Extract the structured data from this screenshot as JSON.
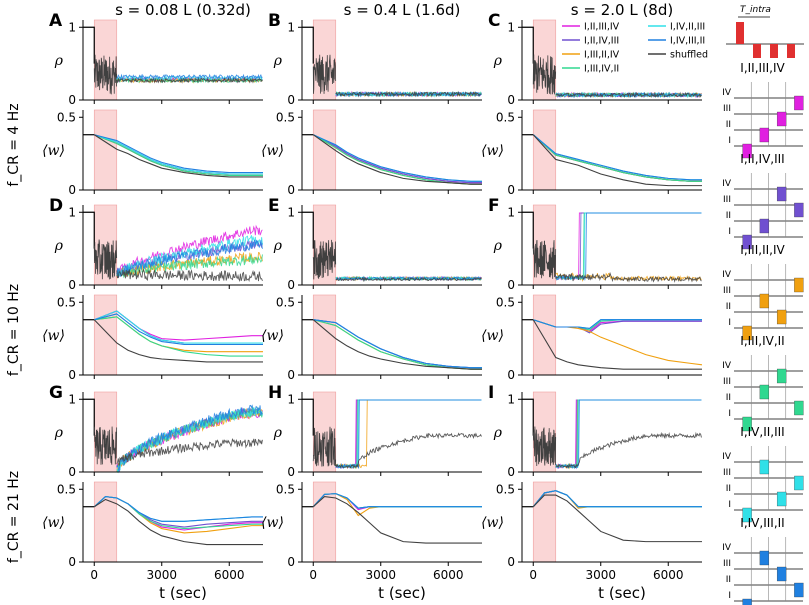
{
  "chart_data": {
    "type": "line",
    "column_titles": [
      "s = 0.08 L (0.32d)",
      "s = 0.4 L (1.6d)",
      "s = 2.0 L (8d)"
    ],
    "row_titles": [
      "f_CR = 4 Hz",
      "f_CR = 10 Hz",
      "f_CR = 21 Hz"
    ],
    "panel_letters": [
      "A",
      "B",
      "C",
      "D",
      "E",
      "F",
      "G",
      "H",
      "I"
    ],
    "xlabel": "t (sec)",
    "xlim": [
      -500,
      7500
    ],
    "xticks": [
      0,
      3000,
      6000
    ],
    "rho_label": "ρ",
    "w_label": "⟨w⟩",
    "rho_ylim": [
      0,
      1.1
    ],
    "rho_yticks": [
      0,
      1
    ],
    "w_ylim": [
      0,
      0.55
    ],
    "w_yticks": [
      0,
      0.5
    ],
    "stim_window": [
      0,
      1000
    ],
    "series_names": [
      "I,II,III,IV",
      "I,II,IV,III",
      "I,III,II,IV",
      "I,III,IV,II",
      "I,IV,II,III",
      "I,IV,III,II",
      "shuffled"
    ],
    "series_colors": [
      "#e020e0",
      "#7050d0",
      "#f0a010",
      "#30d890",
      "#30e0e8",
      "#2080e0",
      "#404040"
    ],
    "t_points": [
      1000,
      1500,
      2000,
      2500,
      3000,
      4000,
      5000,
      6000,
      7000,
      7500
    ],
    "panels": [
      {
        "row": 0,
        "col": 0,
        "rho_final": [
          0.28,
          0.28,
          0.27,
          0.27,
          0.3,
          0.32,
          0.27
        ],
        "w": [
          [
            0.32,
            0.28,
            0.24,
            0.2,
            0.17,
            0.13,
            0.11,
            0.1,
            0.1,
            0.1
          ],
          [
            0.33,
            0.29,
            0.25,
            0.21,
            0.18,
            0.14,
            0.12,
            0.11,
            0.11,
            0.11
          ],
          [
            0.32,
            0.28,
            0.24,
            0.2,
            0.17,
            0.13,
            0.11,
            0.1,
            0.1,
            0.1
          ],
          [
            0.32,
            0.28,
            0.24,
            0.2,
            0.17,
            0.13,
            0.11,
            0.1,
            0.1,
            0.1
          ],
          [
            0.33,
            0.29,
            0.25,
            0.21,
            0.18,
            0.14,
            0.12,
            0.11,
            0.11,
            0.11
          ],
          [
            0.34,
            0.3,
            0.26,
            0.22,
            0.19,
            0.15,
            0.13,
            0.12,
            0.12,
            0.12
          ],
          [
            0.28,
            0.25,
            0.21,
            0.18,
            0.15,
            0.12,
            0.1,
            0.09,
            0.09,
            0.09
          ]
        ]
      },
      {
        "row": 0,
        "col": 1,
        "rho_final": [
          0.08,
          0.08,
          0.08,
          0.08,
          0.08,
          0.08,
          0.08
        ],
        "w": [
          [
            0.3,
            0.25,
            0.21,
            0.18,
            0.15,
            0.11,
            0.08,
            0.06,
            0.05,
            0.05
          ],
          [
            0.3,
            0.25,
            0.21,
            0.18,
            0.15,
            0.11,
            0.08,
            0.06,
            0.05,
            0.05
          ],
          [
            0.29,
            0.24,
            0.2,
            0.17,
            0.14,
            0.1,
            0.07,
            0.05,
            0.04,
            0.04
          ],
          [
            0.29,
            0.24,
            0.2,
            0.17,
            0.14,
            0.1,
            0.07,
            0.05,
            0.04,
            0.04
          ],
          [
            0.31,
            0.26,
            0.22,
            0.19,
            0.16,
            0.12,
            0.09,
            0.07,
            0.06,
            0.06
          ],
          [
            0.31,
            0.26,
            0.22,
            0.19,
            0.16,
            0.12,
            0.09,
            0.07,
            0.06,
            0.06
          ],
          [
            0.27,
            0.22,
            0.18,
            0.15,
            0.12,
            0.08,
            0.06,
            0.05,
            0.04,
            0.04
          ]
        ]
      },
      {
        "row": 0,
        "col": 2,
        "rho_final": [
          0.07,
          0.07,
          0.07,
          0.07,
          0.07,
          0.07,
          0.07
        ],
        "w": [
          [
            0.24,
            0.22,
            0.2,
            0.18,
            0.16,
            0.12,
            0.09,
            0.07,
            0.06,
            0.06
          ],
          [
            0.24,
            0.22,
            0.2,
            0.18,
            0.16,
            0.12,
            0.09,
            0.07,
            0.06,
            0.06
          ],
          [
            0.24,
            0.22,
            0.2,
            0.18,
            0.16,
            0.12,
            0.09,
            0.07,
            0.06,
            0.06
          ],
          [
            0.24,
            0.22,
            0.2,
            0.18,
            0.16,
            0.12,
            0.09,
            0.07,
            0.06,
            0.06
          ],
          [
            0.25,
            0.23,
            0.21,
            0.19,
            0.17,
            0.13,
            0.1,
            0.08,
            0.07,
            0.07
          ],
          [
            0.25,
            0.23,
            0.21,
            0.19,
            0.17,
            0.13,
            0.1,
            0.08,
            0.07,
            0.07
          ],
          [
            0.21,
            0.19,
            0.17,
            0.14,
            0.11,
            0.07,
            0.04,
            0.03,
            0.03,
            0.03
          ]
        ]
      },
      {
        "row": 1,
        "col": 0,
        "rho_final": [
          0.75,
          0.55,
          0.38,
          0.35,
          0.62,
          0.55,
          0.12
        ],
        "w": [
          [
            0.44,
            0.38,
            0.32,
            0.28,
            0.25,
            0.24,
            0.25,
            0.26,
            0.27,
            0.27
          ],
          [
            0.44,
            0.38,
            0.32,
            0.27,
            0.24,
            0.22,
            0.22,
            0.22,
            0.22,
            0.22
          ],
          [
            0.4,
            0.34,
            0.28,
            0.23,
            0.2,
            0.17,
            0.16,
            0.16,
            0.16,
            0.16
          ],
          [
            0.4,
            0.34,
            0.28,
            0.23,
            0.2,
            0.16,
            0.14,
            0.13,
            0.13,
            0.13
          ],
          [
            0.44,
            0.38,
            0.32,
            0.27,
            0.24,
            0.22,
            0.22,
            0.22,
            0.22,
            0.22
          ],
          [
            0.42,
            0.36,
            0.3,
            0.26,
            0.23,
            0.21,
            0.21,
            0.21,
            0.21,
            0.21
          ],
          [
            0.22,
            0.17,
            0.14,
            0.12,
            0.11,
            0.1,
            0.09,
            0.09,
            0.09,
            0.09
          ]
        ]
      },
      {
        "row": 1,
        "col": 1,
        "rho_final": [
          0.09,
          0.09,
          0.09,
          0.09,
          0.09,
          0.09,
          0.08
        ],
        "w": [
          [
            0.36,
            0.31,
            0.26,
            0.22,
            0.18,
            0.12,
            0.08,
            0.06,
            0.05,
            0.05
          ],
          [
            0.36,
            0.31,
            0.26,
            0.22,
            0.18,
            0.12,
            0.08,
            0.06,
            0.05,
            0.05
          ],
          [
            0.34,
            0.29,
            0.24,
            0.2,
            0.16,
            0.11,
            0.07,
            0.05,
            0.04,
            0.04
          ],
          [
            0.34,
            0.29,
            0.24,
            0.2,
            0.16,
            0.11,
            0.07,
            0.05,
            0.04,
            0.04
          ],
          [
            0.36,
            0.31,
            0.26,
            0.22,
            0.18,
            0.12,
            0.08,
            0.06,
            0.05,
            0.05
          ],
          [
            0.36,
            0.31,
            0.26,
            0.22,
            0.18,
            0.12,
            0.08,
            0.06,
            0.05,
            0.05
          ],
          [
            0.25,
            0.2,
            0.16,
            0.13,
            0.11,
            0.08,
            0.06,
            0.05,
            0.04,
            0.04
          ]
        ]
      },
      {
        "row": 1,
        "col": 2,
        "rho_final": [
          1.0,
          1.0,
          0.09,
          1.0,
          1.0,
          1.0,
          0.08
        ],
        "w": [
          [
            0.33,
            0.33,
            0.33,
            0.3,
            0.36,
            0.37,
            0.37,
            0.37,
            0.37,
            0.37
          ],
          [
            0.33,
            0.33,
            0.33,
            0.29,
            0.35,
            0.37,
            0.37,
            0.37,
            0.37,
            0.37
          ],
          [
            0.33,
            0.33,
            0.32,
            0.3,
            0.26,
            0.2,
            0.14,
            0.1,
            0.08,
            0.07
          ],
          [
            0.33,
            0.33,
            0.33,
            0.31,
            0.37,
            0.38,
            0.38,
            0.38,
            0.38,
            0.38
          ],
          [
            0.33,
            0.33,
            0.33,
            0.32,
            0.38,
            0.38,
            0.38,
            0.38,
            0.38,
            0.38
          ],
          [
            0.33,
            0.33,
            0.33,
            0.32,
            0.38,
            0.38,
            0.38,
            0.38,
            0.38,
            0.38
          ],
          [
            0.12,
            0.09,
            0.07,
            0.06,
            0.05,
            0.04,
            0.04,
            0.04,
            0.04,
            0.04
          ]
        ]
      },
      {
        "row": 2,
        "col": 0,
        "rho_final": [
          0.8,
          0.82,
          0.8,
          0.82,
          0.82,
          0.85,
          0.4
        ],
        "w": [
          [
            0.44,
            0.4,
            0.33,
            0.28,
            0.24,
            0.22,
            0.24,
            0.26,
            0.27,
            0.27
          ],
          [
            0.44,
            0.4,
            0.34,
            0.29,
            0.26,
            0.24,
            0.26,
            0.27,
            0.28,
            0.28
          ],
          [
            0.44,
            0.4,
            0.33,
            0.27,
            0.23,
            0.2,
            0.21,
            0.23,
            0.25,
            0.25
          ],
          [
            0.44,
            0.4,
            0.33,
            0.28,
            0.25,
            0.23,
            0.24,
            0.25,
            0.26,
            0.26
          ],
          [
            0.44,
            0.4,
            0.34,
            0.3,
            0.28,
            0.28,
            0.29,
            0.3,
            0.31,
            0.31
          ],
          [
            0.44,
            0.4,
            0.34,
            0.3,
            0.28,
            0.28,
            0.29,
            0.3,
            0.31,
            0.31
          ],
          [
            0.4,
            0.35,
            0.28,
            0.22,
            0.18,
            0.14,
            0.12,
            0.12,
            0.12,
            0.12
          ]
        ]
      },
      {
        "row": 2,
        "col": 1,
        "rho_final": [
          1.0,
          1.0,
          1.0,
          1.0,
          1.0,
          1.0,
          0.5
        ],
        "w": [
          [
            0.47,
            0.44,
            0.36,
            0.38,
            0.38,
            0.38,
            0.38,
            0.38,
            0.38,
            0.38
          ],
          [
            0.47,
            0.44,
            0.37,
            0.38,
            0.38,
            0.38,
            0.38,
            0.38,
            0.38,
            0.38
          ],
          [
            0.47,
            0.43,
            0.32,
            0.37,
            0.38,
            0.38,
            0.38,
            0.38,
            0.38,
            0.38
          ],
          [
            0.47,
            0.44,
            0.37,
            0.38,
            0.38,
            0.38,
            0.38,
            0.38,
            0.38,
            0.38
          ],
          [
            0.47,
            0.44,
            0.37,
            0.38,
            0.38,
            0.38,
            0.38,
            0.38,
            0.38,
            0.38
          ],
          [
            0.47,
            0.44,
            0.37,
            0.38,
            0.38,
            0.38,
            0.38,
            0.38,
            0.38,
            0.38
          ],
          [
            0.44,
            0.4,
            0.34,
            0.27,
            0.2,
            0.14,
            0.13,
            0.13,
            0.13,
            0.13
          ]
        ]
      },
      {
        "row": 2,
        "col": 2,
        "rho_final": [
          1.0,
          1.0,
          1.0,
          1.0,
          1.0,
          1.0,
          0.5
        ],
        "w": [
          [
            0.49,
            0.46,
            0.38,
            0.38,
            0.38,
            0.38,
            0.38,
            0.38,
            0.38,
            0.38
          ],
          [
            0.49,
            0.46,
            0.38,
            0.38,
            0.38,
            0.38,
            0.38,
            0.38,
            0.38,
            0.38
          ],
          [
            0.49,
            0.46,
            0.37,
            0.38,
            0.38,
            0.38,
            0.38,
            0.38,
            0.38,
            0.38
          ],
          [
            0.49,
            0.46,
            0.38,
            0.38,
            0.38,
            0.38,
            0.38,
            0.38,
            0.38,
            0.38
          ],
          [
            0.49,
            0.46,
            0.38,
            0.38,
            0.38,
            0.38,
            0.38,
            0.38,
            0.38,
            0.38
          ],
          [
            0.49,
            0.46,
            0.38,
            0.38,
            0.38,
            0.38,
            0.38,
            0.38,
            0.38,
            0.38
          ],
          [
            0.46,
            0.42,
            0.35,
            0.28,
            0.21,
            0.15,
            0.14,
            0.14,
            0.14,
            0.14
          ]
        ]
      }
    ],
    "pattern_header": "T_intra",
    "lane_labels": [
      "IV",
      "III",
      "II",
      "I"
    ],
    "patterns": [
      {
        "title": "I,II,III,IV",
        "order": [
          1,
          2,
          3,
          4
        ],
        "color": "#e020e0"
      },
      {
        "title": "I,II,IV,III",
        "order": [
          1,
          2,
          4,
          3
        ],
        "color": "#7050d0"
      },
      {
        "title": "I,III,II,IV",
        "order": [
          1,
          3,
          2,
          4
        ],
        "color": "#f0a010"
      },
      {
        "title": "I,III,IV,II",
        "order": [
          1,
          3,
          4,
          2
        ],
        "color": "#30d890"
      },
      {
        "title": "I,IV,II,III",
        "order": [
          1,
          4,
          2,
          3
        ],
        "color": "#30e0e8"
      },
      {
        "title": "I,IV,III,II",
        "order": [
          1,
          4,
          3,
          2
        ],
        "color": "#2080e0"
      }
    ]
  }
}
